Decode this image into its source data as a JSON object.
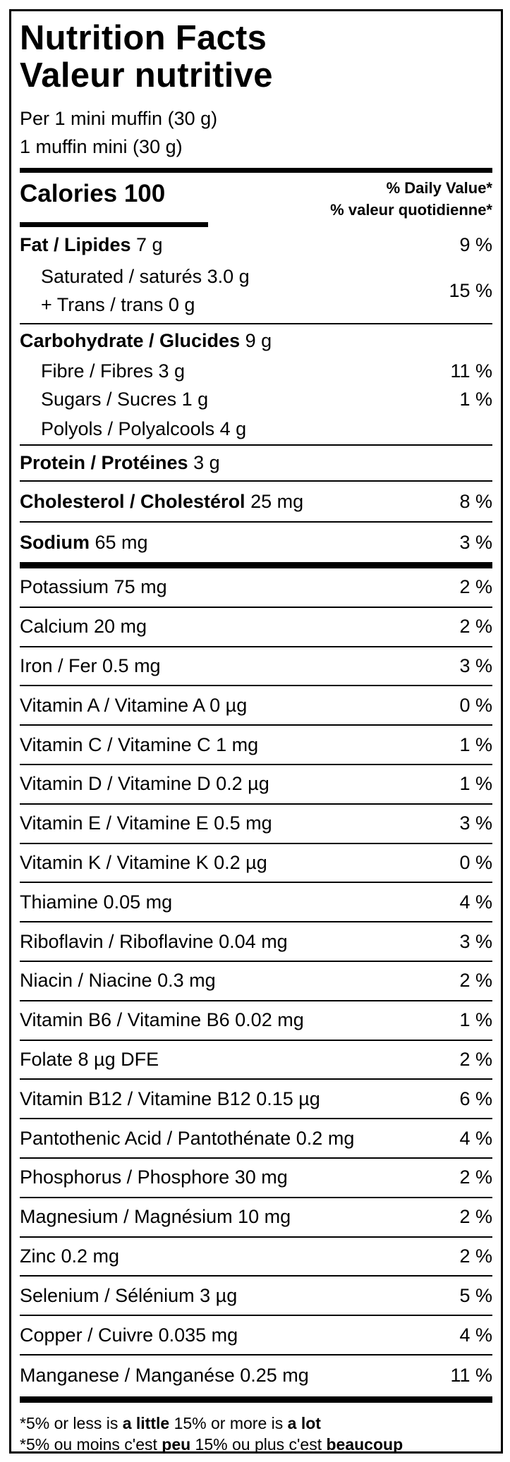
{
  "title_en": "Nutrition Facts",
  "title_fr": "Valeur nutritive",
  "serving_en": "Per 1 mini muffin (30 g)",
  "serving_fr": "1 muffin mini (30 g)",
  "calories": "Calories 100",
  "dv_en": "% Daily Value*",
  "dv_fr": "% valeur quotidienne*",
  "fat": {
    "name": "Fat / Lipides",
    "amount": " 7 g",
    "dv": "9 %"
  },
  "saturated": {
    "name": "Saturated / saturés 3.0 g"
  },
  "trans": {
    "name": "+ Trans / trans 0 g"
  },
  "sat_trans_dv": "15 %",
  "carb": {
    "name": "Carbohydrate / Glucides",
    "amount": " 9 g"
  },
  "carb_sub": [
    {
      "name": "Fibre / Fibres 3 g",
      "dv": "11 %"
    },
    {
      "name": "Sugars / Sucres 1 g",
      "dv": "1 %"
    },
    {
      "name": "Polyols / Polyalcools 4 g",
      "dv": ""
    }
  ],
  "protein": {
    "name": "Protein / Protéines",
    "amount": " 3 g"
  },
  "cholesterol": {
    "name": "Cholesterol / Cholestérol",
    "amount": " 25 mg",
    "dv": "8 %"
  },
  "sodium": {
    "name": "Sodium",
    "amount": " 65 mg",
    "dv": "3 %"
  },
  "micros": [
    {
      "name": "Potassium 75 mg",
      "dv": "2 %"
    },
    {
      "name": "Calcium 20 mg",
      "dv": "2 %"
    },
    {
      "name": "Iron / Fer 0.5 mg",
      "dv": "3 %"
    },
    {
      "name": "Vitamin A / Vitamine A 0 µg",
      "dv": "0 %"
    },
    {
      "name": "Vitamin C / Vitamine C 1 mg",
      "dv": "1 %"
    },
    {
      "name": "Vitamin D / Vitamine D 0.2 µg",
      "dv": "1 %"
    },
    {
      "name": "Vitamin E / Vitamine E 0.5 mg",
      "dv": "3 %"
    },
    {
      "name": "Vitamin K / Vitamine K 0.2 µg",
      "dv": "0 %"
    },
    {
      "name": "Thiamine 0.05 mg",
      "dv": "4 %"
    },
    {
      "name": "Riboflavin / Riboflavine 0.04 mg",
      "dv": "3 %"
    },
    {
      "name": "Niacin / Niacine 0.3 mg",
      "dv": "2 %"
    },
    {
      "name": "Vitamin B6 / Vitamine B6 0.02 mg",
      "dv": "1 %"
    },
    {
      "name": "Folate 8 µg DFE",
      "dv": "2 %"
    },
    {
      "name": "Vitamin B12 / Vitamine B12 0.15 µg",
      "dv": "6 %"
    },
    {
      "name": "Pantothenic Acid / Pantothénate 0.2 mg",
      "dv": "4 %"
    },
    {
      "name": "Phosphorus / Phosphore 30 mg",
      "dv": "2 %"
    },
    {
      "name": "Magnesium / Magnésium 10 mg",
      "dv": "2 %"
    },
    {
      "name": "Zinc 0.2 mg",
      "dv": "2 %"
    },
    {
      "name": "Selenium / Sélénium 3 µg",
      "dv": "5 %"
    },
    {
      "name": "Copper / Cuivre 0.035 mg",
      "dv": "4 %"
    },
    {
      "name": "Manganese / Manganése 0.25 mg",
      "dv": "11 %"
    }
  ],
  "footnote_en": {
    "a": "*5% or less is ",
    "b": "a little",
    "c": " 15% or more is ",
    "d": "a lot"
  },
  "footnote_fr": {
    "a": "*5% ou moins c'est ",
    "b": "peu",
    "c": " 15% ou plus c'est ",
    "d": "beaucoup"
  }
}
